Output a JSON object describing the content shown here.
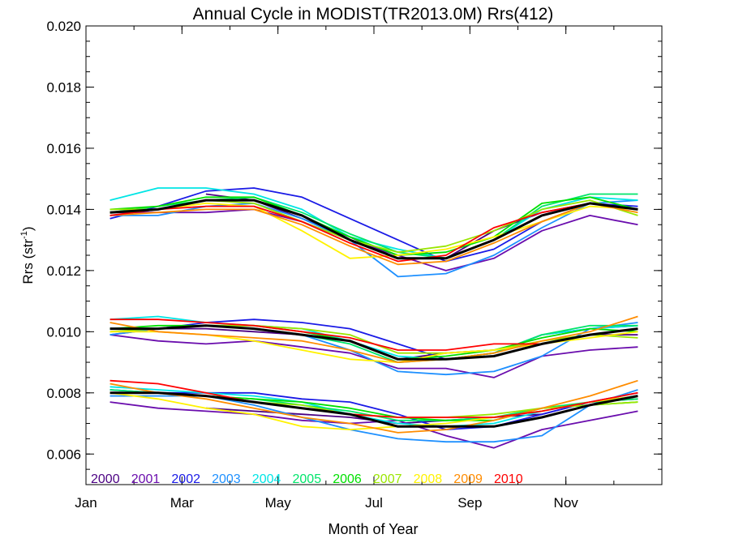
{
  "chart_data": {
    "type": "line",
    "title": "Annual Cycle in MODIST(TR2013.0M) Rrs(412)",
    "xlabel": "Month of Year",
    "ylabel_main": "Rrs (str",
    "ylabel_sup": "-1",
    "ylabel_close": ")",
    "xlim": [
      1,
      13
    ],
    "ylim": [
      0.005,
      0.02
    ],
    "x_ticks": [
      {
        "v": 1,
        "label": "Jan"
      },
      {
        "v": 3,
        "label": "Mar"
      },
      {
        "v": 5,
        "label": "May"
      },
      {
        "v": 7,
        "label": "Jul"
      },
      {
        "v": 9,
        "label": "Sep"
      },
      {
        "v": 11,
        "label": "Nov"
      }
    ],
    "y_ticks": [
      {
        "v": 0.006,
        "label": "0.006"
      },
      {
        "v": 0.008,
        "label": "0.008"
      },
      {
        "v": 0.01,
        "label": "0.010"
      },
      {
        "v": 0.012,
        "label": "0.012"
      },
      {
        "v": 0.014,
        "label": "0.014"
      },
      {
        "v": 0.016,
        "label": "0.016"
      },
      {
        "v": 0.018,
        "label": "0.018"
      },
      {
        "v": 0.02,
        "label": "0.020"
      }
    ],
    "grid": false,
    "legend_position": "bottom-left",
    "legend": [
      {
        "name": "2000",
        "color": "#4B0082"
      },
      {
        "name": "2001",
        "color": "#6A0DAD"
      },
      {
        "name": "2002",
        "color": "#1A1AE6"
      },
      {
        "name": "2003",
        "color": "#1E90FF"
      },
      {
        "name": "2004",
        "color": "#00E5E5"
      },
      {
        "name": "2005",
        "color": "#00E56B"
      },
      {
        "name": "2006",
        "color": "#00E000"
      },
      {
        "name": "2007",
        "color": "#9AE600"
      },
      {
        "name": "2008",
        "color": "#FFF200"
      },
      {
        "name": "2009",
        "color": "#FF8C00"
      },
      {
        "name": "2010",
        "color": "#FF0000"
      }
    ],
    "x": [
      1.5,
      2.5,
      3.5,
      4.5,
      5.5,
      6.5,
      7.5,
      8.5,
      9.5,
      10.5,
      11.5,
      12.5
    ],
    "series": [
      {
        "color": "#4B0082",
        "group": "top",
        "values": [
          0.0137,
          null,
          0.0145,
          0.0143,
          0.0137,
          0.0131,
          0.0124,
          0.0124,
          0.0133,
          0.0139,
          0.0142,
          0.014
        ]
      },
      {
        "color": "#6A0DAD",
        "group": "top",
        "values": [
          0.0139,
          0.0139,
          0.0139,
          0.014,
          0.0136,
          0.013,
          0.0125,
          0.012,
          0.0124,
          0.0133,
          0.0138,
          0.0135
        ]
      },
      {
        "color": "#1A1AE6",
        "group": "top",
        "values": [
          0.0137,
          0.0141,
          0.0146,
          0.0147,
          0.0144,
          0.0137,
          0.013,
          0.0123,
          0.0127,
          0.0136,
          0.0142,
          0.0141
        ]
      },
      {
        "color": "#1E90FF",
        "group": "top",
        "values": [
          0.0138,
          0.0138,
          0.0141,
          0.0142,
          0.0137,
          0.013,
          0.0118,
          0.0119,
          0.0125,
          0.0134,
          0.0142,
          0.0143
        ]
      },
      {
        "color": "#00E5E5",
        "group": "top",
        "values": [
          0.0143,
          0.0147,
          0.0147,
          0.0145,
          0.014,
          0.0131,
          0.0127,
          0.0124,
          0.013,
          0.014,
          0.0144,
          0.0143
        ]
      },
      {
        "color": "#00E56B",
        "group": "top",
        "values": [
          0.0139,
          0.0141,
          0.0143,
          0.0144,
          0.0139,
          0.0132,
          0.0126,
          0.0124,
          0.013,
          0.0141,
          0.0145,
          0.0145
        ]
      },
      {
        "color": "#00E000",
        "group": "top",
        "values": [
          0.014,
          0.0141,
          0.0144,
          0.0144,
          0.0138,
          0.0131,
          0.0125,
          0.0126,
          0.0131,
          0.0142,
          0.0144,
          0.014
        ]
      },
      {
        "color": "#9AE600",
        "group": "top",
        "values": [
          0.014,
          0.014,
          0.0143,
          0.0142,
          0.0136,
          0.013,
          0.0126,
          0.0128,
          0.0133,
          0.014,
          0.0143,
          0.0138
        ]
      },
      {
        "color": "#FFF200",
        "group": "top",
        "values": [
          0.0139,
          0.014,
          0.0142,
          0.0141,
          0.0133,
          0.0124,
          0.0125,
          0.0127,
          0.0131,
          0.0136,
          0.0141,
          0.014
        ]
      },
      {
        "color": "#FF8C00",
        "group": "top",
        "values": [
          0.0138,
          0.0139,
          0.014,
          0.014,
          0.0135,
          0.0128,
          0.0122,
          0.0123,
          0.0129,
          0.0136,
          0.0142,
          0.0139
        ]
      },
      {
        "color": "#FF0000",
        "group": "top",
        "values": [
          0.0138,
          0.014,
          0.0141,
          0.0141,
          0.0136,
          0.0129,
          0.0123,
          0.0125,
          0.0134,
          0.0139,
          0.0142,
          0.014
        ]
      },
      {
        "color": "#000000",
        "group": "top-mean",
        "width": 3,
        "values": [
          0.0139,
          0.014,
          0.0143,
          0.0143,
          0.0138,
          0.013,
          0.0124,
          0.0124,
          0.013,
          0.0138,
          0.0142,
          0.014
        ]
      },
      {
        "color": "#4B0082",
        "group": "mid",
        "values": [
          0.0101,
          0.0101,
          0.0101,
          0.01,
          0.0099,
          0.0097,
          0.0091,
          0.0093,
          0.0094,
          0.0096,
          0.0099,
          0.0099
        ]
      },
      {
        "color": "#6A0DAD",
        "group": "mid",
        "values": [
          0.0099,
          0.0097,
          0.0096,
          0.0097,
          0.0095,
          0.0093,
          0.0088,
          0.0088,
          0.0085,
          0.0092,
          0.0094,
          0.0095
        ]
      },
      {
        "color": "#1A1AE6",
        "group": "mid",
        "values": [
          0.0099,
          0.0101,
          0.0103,
          0.0104,
          0.0103,
          0.0101,
          0.0096,
          0.0091,
          0.0093,
          0.0099,
          0.0101,
          0.0102
        ]
      },
      {
        "color": "#1E90FF",
        "group": "mid",
        "values": [
          0.0099,
          0.0101,
          0.0102,
          0.0101,
          0.0099,
          0.0094,
          0.0087,
          0.0086,
          0.0087,
          0.0092,
          0.0101,
          0.0103
        ]
      },
      {
        "color": "#00E5E5",
        "group": "mid",
        "values": [
          0.0104,
          0.0105,
          0.0103,
          0.0102,
          0.0101,
          0.0097,
          0.0092,
          0.0091,
          0.0093,
          0.0099,
          0.0101,
          0.0102
        ]
      },
      {
        "color": "#00E56B",
        "group": "mid",
        "values": [
          0.0101,
          0.0101,
          0.0102,
          0.0101,
          0.0099,
          0.0096,
          0.009,
          0.0091,
          0.0093,
          0.0099,
          0.0102,
          0.0102
        ]
      },
      {
        "color": "#00E000",
        "group": "mid",
        "values": [
          0.0101,
          0.0102,
          0.0102,
          0.0102,
          0.01,
          0.0097,
          0.0091,
          0.0092,
          0.0094,
          0.0098,
          0.0101,
          0.01
        ]
      },
      {
        "color": "#9AE600",
        "group": "mid",
        "values": [
          0.01,
          0.0101,
          0.0102,
          0.0102,
          0.0101,
          0.0099,
          0.0093,
          0.0093,
          0.0094,
          0.0097,
          0.0099,
          0.0098
        ]
      },
      {
        "color": "#FFF200",
        "group": "mid",
        "values": [
          0.01,
          0.01,
          0.0099,
          0.0097,
          0.0094,
          0.0091,
          0.009,
          0.0093,
          0.0094,
          0.0096,
          0.0098,
          0.01
        ]
      },
      {
        "color": "#FF8C00",
        "group": "mid",
        "values": [
          0.0103,
          0.01,
          0.0099,
          0.0098,
          0.0097,
          0.0094,
          0.009,
          0.0091,
          0.0093,
          0.0097,
          0.01,
          0.0105
        ]
      },
      {
        "color": "#FF0000",
        "group": "mid",
        "values": [
          0.0104,
          0.0104,
          0.0103,
          0.0102,
          0.01,
          0.0098,
          0.0094,
          0.0094,
          0.0096,
          0.0096,
          0.0099,
          0.0101
        ]
      },
      {
        "color": "#000000",
        "group": "mid-mean",
        "width": 3,
        "values": [
          0.0101,
          0.0101,
          0.0102,
          0.0101,
          0.0099,
          0.0097,
          0.0091,
          0.0091,
          0.0092,
          0.0096,
          0.0099,
          0.0101
        ]
      },
      {
        "color": "#4B0082",
        "group": "bottom",
        "values": [
          0.0078,
          null,
          0.0075,
          0.0074,
          0.0073,
          0.0072,
          0.007,
          0.0071,
          0.0072,
          0.0073,
          0.0077,
          0.0078
        ]
      },
      {
        "color": "#6A0DAD",
        "group": "bottom",
        "values": [
          0.0077,
          0.0075,
          0.0074,
          0.0073,
          0.0071,
          0.007,
          0.0071,
          0.0066,
          0.0062,
          0.0068,
          0.0071,
          0.0074
        ]
      },
      {
        "color": "#1A1AE6",
        "group": "bottom",
        "values": [
          0.0081,
          0.008,
          0.008,
          0.008,
          0.0078,
          0.0077,
          0.0073,
          0.0068,
          0.0069,
          0.0073,
          0.0077,
          0.008
        ]
      },
      {
        "color": "#1E90FF",
        "group": "bottom",
        "values": [
          0.0079,
          0.0079,
          0.0079,
          0.0076,
          0.0072,
          0.0068,
          0.0065,
          0.0064,
          0.0064,
          0.0066,
          0.0076,
          0.0081
        ]
      },
      {
        "color": "#00E5E5",
        "group": "bottom",
        "values": [
          0.0082,
          0.0081,
          0.008,
          0.0079,
          0.0077,
          0.0073,
          0.007,
          0.0069,
          0.007,
          0.0074,
          0.0077,
          0.0079
        ]
      },
      {
        "color": "#00E56B",
        "group": "bottom",
        "values": [
          0.0081,
          0.008,
          0.0079,
          0.0078,
          0.0076,
          0.0074,
          0.0071,
          0.0071,
          0.0072,
          0.0075,
          0.0077,
          0.0078
        ]
      },
      {
        "color": "#00E000",
        "group": "bottom",
        "values": [
          0.008,
          0.008,
          0.0079,
          0.0078,
          0.0077,
          0.0075,
          0.0072,
          0.0071,
          0.0071,
          0.0075,
          0.0076,
          0.0077
        ]
      },
      {
        "color": "#9AE600",
        "group": "bottom",
        "values": [
          0.008,
          0.008,
          0.0079,
          0.0077,
          0.0076,
          0.0073,
          0.0072,
          0.0072,
          0.0073,
          0.0075,
          0.0076,
          0.0077
        ]
      },
      {
        "color": "#FFF200",
        "group": "bottom",
        "values": [
          0.008,
          0.0078,
          0.0075,
          0.0073,
          0.0069,
          0.0068,
          0.0069,
          0.007,
          0.0072,
          0.0074,
          0.0077,
          0.0079
        ]
      },
      {
        "color": "#FF8C00",
        "group": "bottom",
        "values": [
          0.0083,
          0.008,
          0.0078,
          0.0075,
          0.0072,
          0.007,
          0.0067,
          0.0068,
          0.0071,
          0.0075,
          0.0079,
          0.0084
        ]
      },
      {
        "color": "#FF0000",
        "group": "bottom",
        "values": [
          0.0084,
          0.0083,
          0.008,
          0.0077,
          0.0075,
          0.0073,
          0.0072,
          0.0072,
          0.0072,
          0.0074,
          0.0077,
          0.008
        ]
      },
      {
        "color": "#000000",
        "group": "bottom-mean",
        "width": 3,
        "values": [
          0.008,
          0.008,
          0.0079,
          0.0077,
          0.0075,
          0.0073,
          0.0069,
          0.0069,
          0.0069,
          0.0072,
          0.0076,
          0.0079
        ]
      }
    ]
  }
}
